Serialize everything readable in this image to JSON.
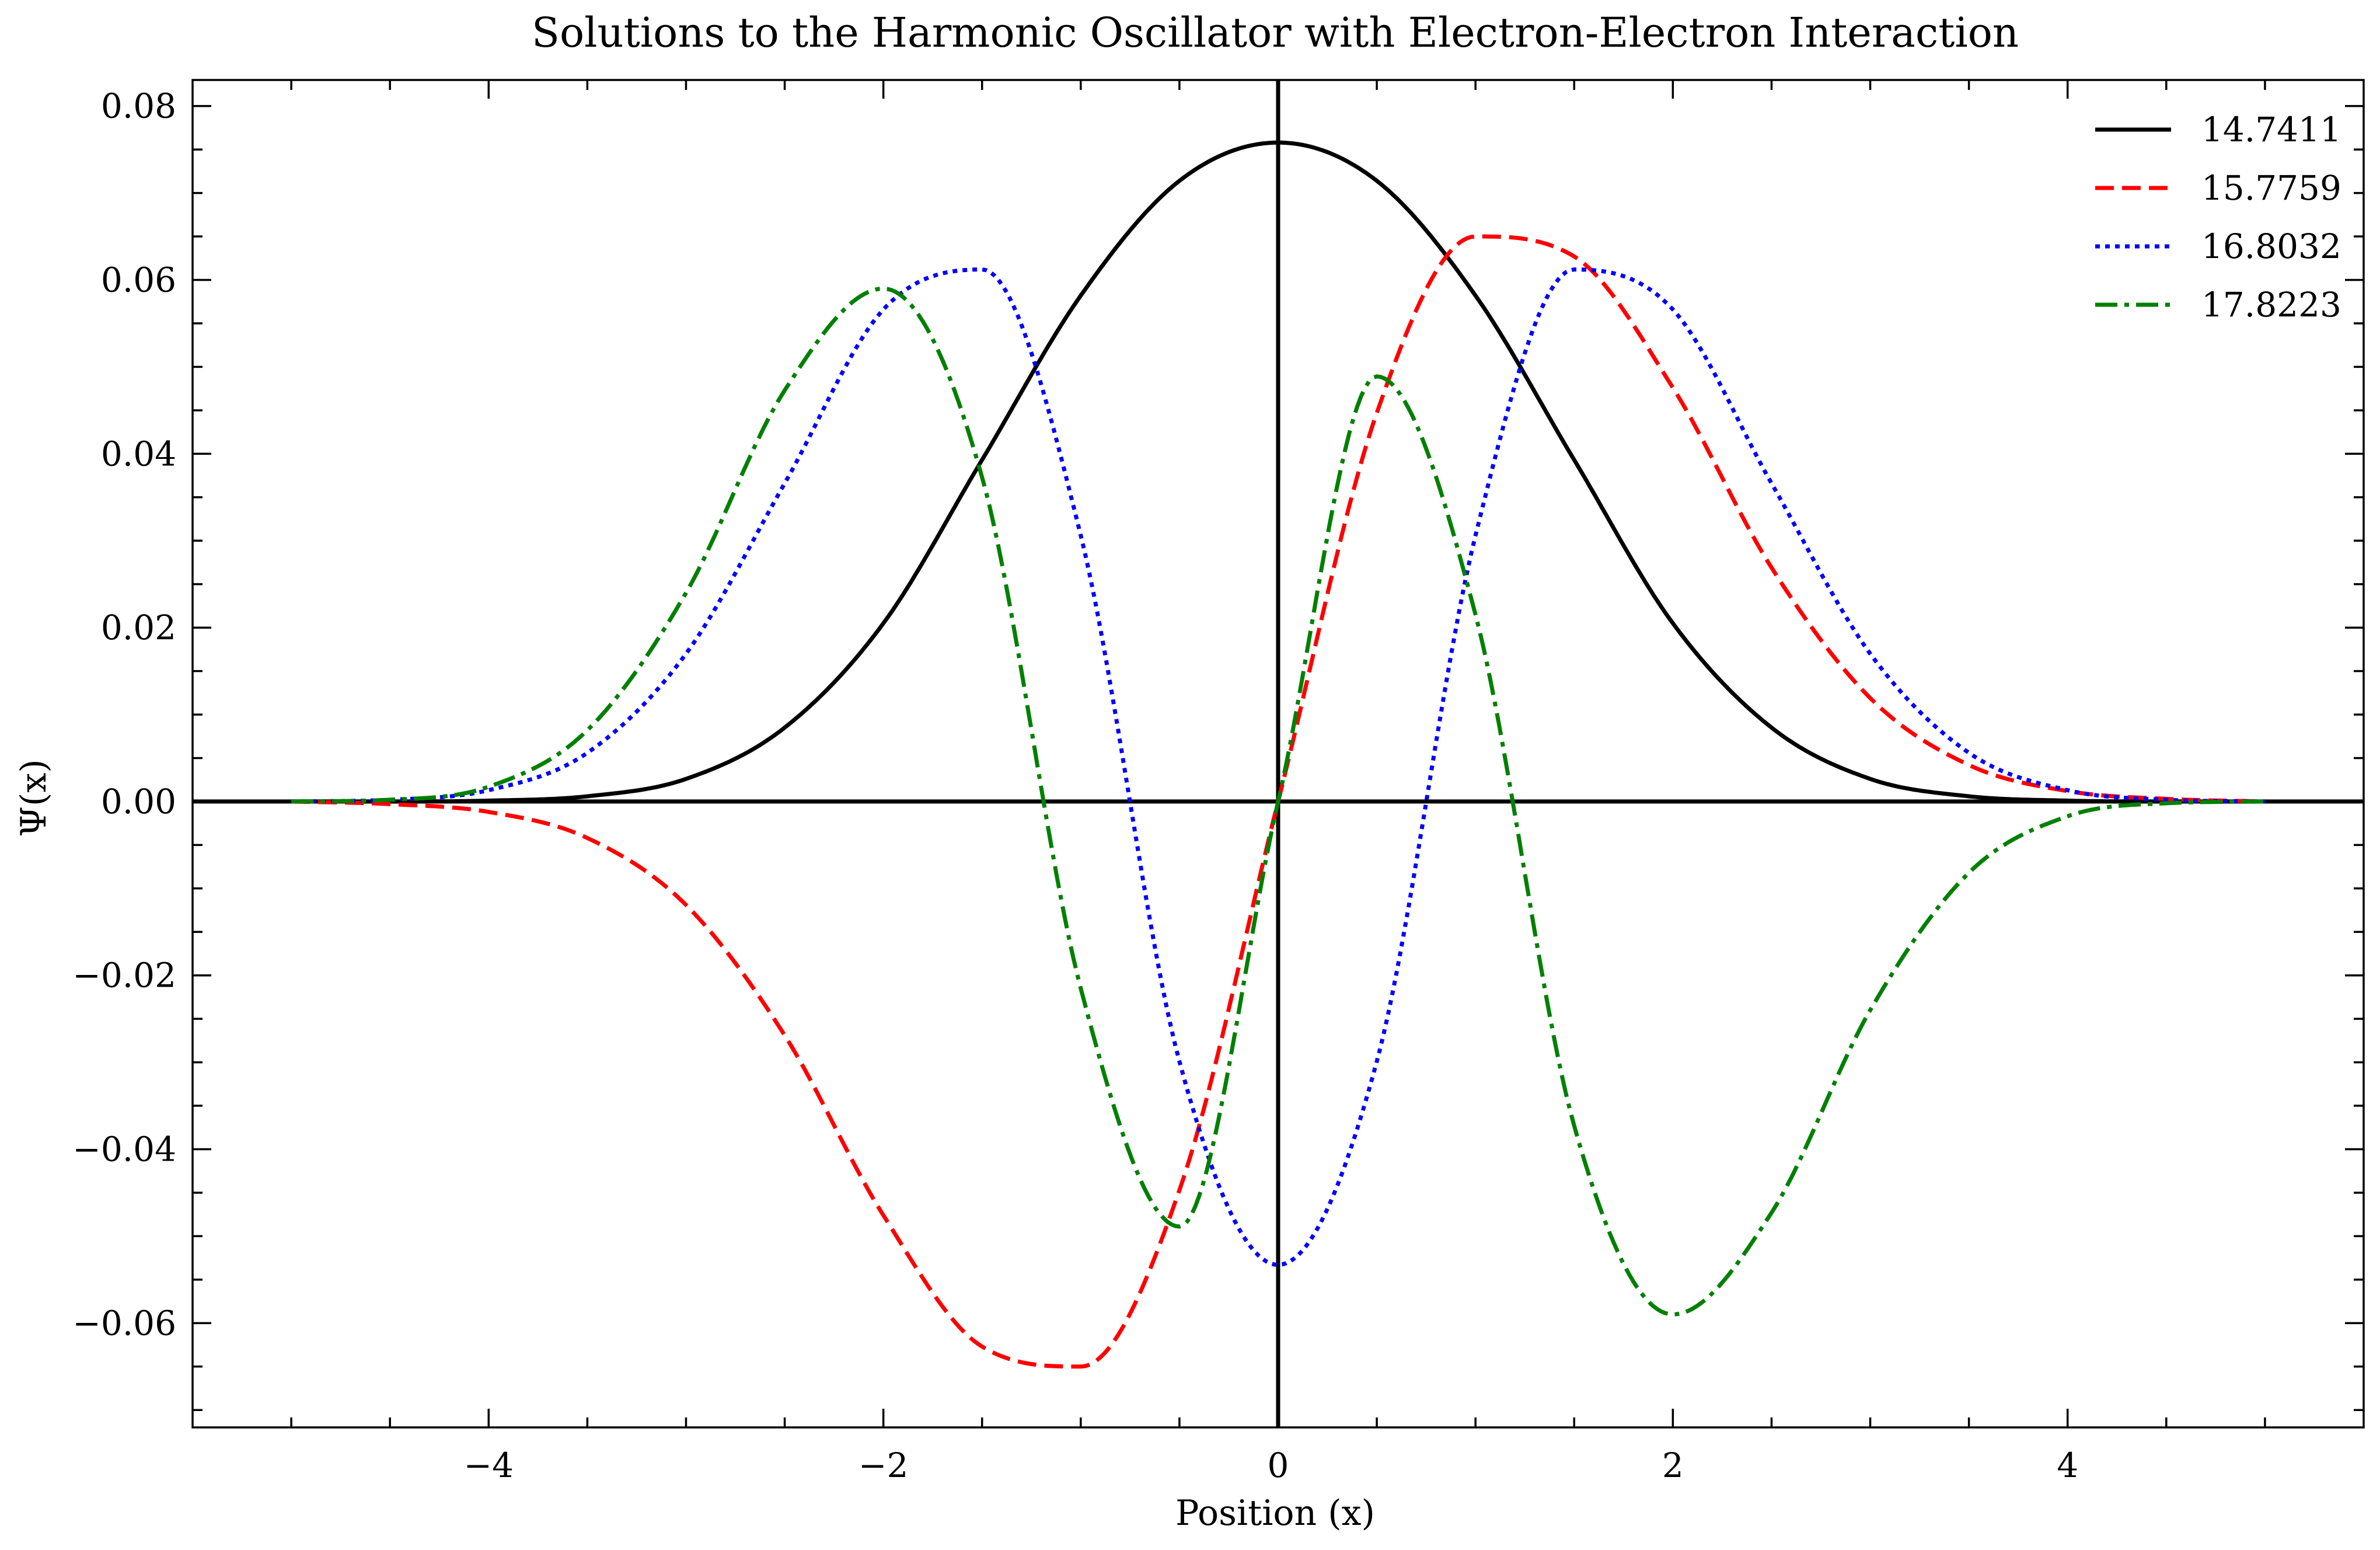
{
  "chart_data": {
    "type": "line",
    "title": "Solutions to the Harmonic Oscillator with Electron-Electron Interaction",
    "xlabel": "Position (x)",
    "ylabel": "Ψ(x)",
    "xlim": [
      -5.5,
      5.5
    ],
    "ylim": [
      -0.072,
      0.083
    ],
    "x_ticks": [
      -4,
      -2,
      0,
      2,
      4
    ],
    "x_tick_labels": [
      "−4",
      "−2",
      "0",
      "2",
      "4"
    ],
    "y_ticks": [
      -0.06,
      -0.04,
      -0.02,
      0.0,
      0.02,
      0.04,
      0.06,
      0.08
    ],
    "y_tick_labels": [
      "−0.06",
      "−0.04",
      "−0.02",
      "0.00",
      "0.02",
      "0.04",
      "0.06",
      "0.08"
    ],
    "grid": false,
    "legend_position": "top-right",
    "x_domain": [
      -5,
      5
    ],
    "series": [
      {
        "name": "14.7411",
        "color": "#000000",
        "dash": "solid",
        "x": [
          -5,
          -4.5,
          -4,
          -3.5,
          -3,
          -2.5,
          -2,
          -1.5,
          -1,
          -0.5,
          0,
          0.5,
          1,
          1.5,
          2,
          2.5,
          3,
          3.5,
          4,
          4.5,
          5
        ],
        "y": [
          0.0,
          0.0,
          0.0001,
          0.0006,
          0.0026,
          0.0085,
          0.0205,
          0.0393,
          0.0582,
          0.0714,
          0.0758,
          0.0714,
          0.0582,
          0.0393,
          0.0205,
          0.0085,
          0.0026,
          0.0006,
          0.0001,
          0.0,
          0.0
        ]
      },
      {
        "name": "15.7759",
        "color": "#ff0000",
        "dash": "dashed",
        "x": [
          -5,
          -4.5,
          -4,
          -3.5,
          -3,
          -2.5,
          -2,
          -1.5,
          -1,
          -0.5,
          0,
          0.5,
          1,
          1.5,
          2,
          2.5,
          3,
          3.5,
          4,
          4.5,
          5
        ],
        "y": [
          0.0,
          -0.0003,
          -0.0012,
          -0.0042,
          -0.0119,
          -0.0269,
          -0.0476,
          -0.0627,
          -0.065,
          -0.0447,
          0.0,
          0.0447,
          0.065,
          0.0627,
          0.0476,
          0.0269,
          0.0119,
          0.0042,
          0.0012,
          0.0003,
          0.0
        ]
      },
      {
        "name": "16.8032",
        "color": "#0000ff",
        "dash": "dotted",
        "x": [
          -5,
          -4.5,
          -4,
          -3.5,
          -3,
          -2.5,
          -2,
          -1.5,
          -1,
          -0.5,
          0,
          0.5,
          1,
          1.5,
          2,
          2.5,
          3,
          3.5,
          4,
          4.5,
          5
        ],
        "y": [
          0.0,
          0.0002,
          0.0013,
          0.0056,
          0.017,
          0.0366,
          0.0566,
          0.0612,
          0.0306,
          -0.0299,
          -0.0533,
          -0.0299,
          0.0306,
          0.0612,
          0.0566,
          0.0366,
          0.017,
          0.0056,
          0.0013,
          0.0002,
          0.0
        ]
      },
      {
        "name": "17.8223",
        "color": "#008000",
        "dash": "dashdot",
        "x": [
          -5,
          -4.5,
          -4,
          -3.5,
          -3,
          -2.5,
          -2,
          -1.5,
          -1,
          -0.5,
          0,
          0.5,
          1,
          1.5,
          2,
          2.5,
          3,
          3.5,
          4,
          4.5,
          5
        ],
        "y": [
          0.0,
          0.0002,
          0.0017,
          0.0082,
          0.024,
          0.0473,
          0.059,
          0.0373,
          -0.0215,
          -0.0489,
          0.0,
          0.0489,
          0.0215,
          -0.0373,
          -0.059,
          -0.0473,
          -0.024,
          -0.0082,
          -0.0017,
          -0.0002,
          0.0
        ]
      }
    ]
  }
}
